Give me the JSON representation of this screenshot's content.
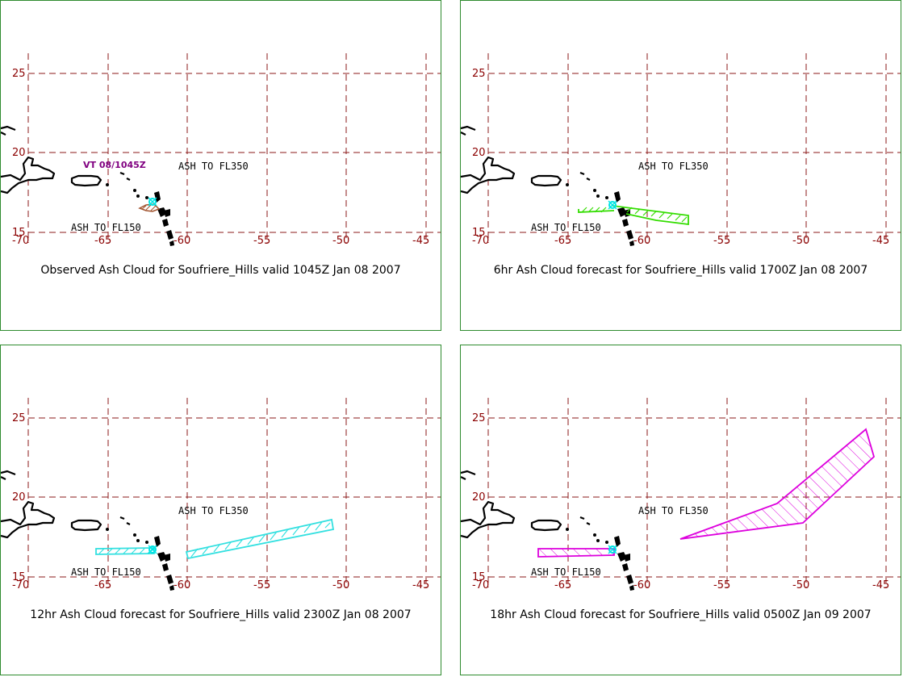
{
  "panels": [
    {
      "caption": "Observed Ash Cloud for Soufriere_Hills valid 1045Z Jan 08 2007",
      "high_label": "ASH TO FL350",
      "low_label": "ASH TO FL150",
      "vt_label": "VT 08/1045Z",
      "ash_color": "#a0522d"
    },
    {
      "caption": "6hr Ash Cloud forecast for Soufriere_Hills valid 1700Z Jan 08 2007",
      "high_label": "ASH TO FL350",
      "low_label": "ASH TO FL150",
      "ash_color": "#33dd00"
    },
    {
      "caption": "12hr Ash Cloud forecast for Soufriere_Hills valid 2300Z Jan 08 2007",
      "high_label": "ASH TO FL350",
      "low_label": "ASH TO FL150",
      "ash_color": "#33e0e0"
    },
    {
      "caption": "18hr Ash Cloud forecast for Soufriere_Hills valid 0500Z Jan 09 2007",
      "high_label": "ASH TO FL350",
      "low_label": "ASH TO FL150",
      "ash_color": "#dd00dd"
    }
  ],
  "axis": {
    "lon_ticks": [
      "-70",
      "-65",
      "-60",
      "-55",
      "-50",
      "-45"
    ],
    "lat_ticks": [
      "25",
      "20",
      "15"
    ]
  },
  "colors": {
    "grid": "#8b1a1a",
    "frame": "#2e8b2e",
    "volcano_marker": "#00e5e5"
  }
}
